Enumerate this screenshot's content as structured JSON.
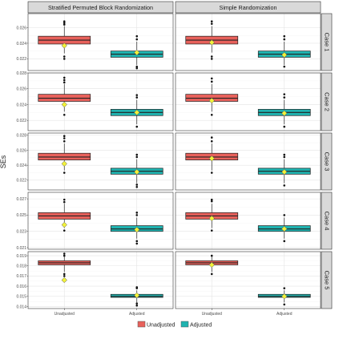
{
  "chart_data": {
    "type": "boxplot",
    "ylabel": "SEs",
    "columns": [
      "Stratified Permuted Block Randomization",
      "Simple Randomization"
    ],
    "rows": [
      "Case 1",
      "Case 2",
      "Case 3",
      "Case 4",
      "Case 5"
    ],
    "categories": [
      "Unadjusted",
      "Adjusted"
    ],
    "legend": {
      "position": "bottom",
      "items": [
        {
          "label": "Unadjusted",
          "color": "#e8615b"
        },
        {
          "label": "Adjusted",
          "color": "#1fb3b0"
        }
      ]
    },
    "colors": {
      "Unadjusted": "#e8615b",
      "Adjusted": "#1fb3b0",
      "marker": "#f2f23a",
      "strip": "#d9d9d9"
    },
    "panels": [
      {
        "row": "Case 1",
        "ylim": [
          0.0205,
          0.0278
        ],
        "yticks": [
          0.022,
          0.024,
          0.026
        ],
        "ytick_labels": [
          "0.022",
          "0.024",
          "0.026"
        ],
        "boxes": [
          {
            "column": "Stratified Permuted Block Randomization",
            "category": "Unadjusted",
            "q1": 0.0239,
            "median": 0.0244,
            "q3": 0.0249,
            "whisker_low": 0.0227,
            "whisker_high": 0.0262,
            "outliers": [
              0.0264,
              0.0266,
              0.0268,
              0.022,
              0.0223
            ],
            "marker": 0.0237
          },
          {
            "column": "Stratified Permuted Block Randomization",
            "category": "Adjusted",
            "q1": 0.0222,
            "median": 0.0226,
            "q3": 0.023,
            "whisker_low": 0.0212,
            "whisker_high": 0.0242,
            "outliers": [
              0.0245,
              0.0249,
              0.021,
              0.0208
            ],
            "marker": 0.0228
          },
          {
            "column": "Simple Randomization",
            "category": "Unadjusted",
            "q1": 0.0239,
            "median": 0.0244,
            "q3": 0.0249,
            "whisker_low": 0.0228,
            "whisker_high": 0.0262,
            "outliers": [
              0.0265,
              0.0268,
              0.0223,
              0.022
            ],
            "marker": 0.0241
          },
          {
            "column": "Simple Randomization",
            "category": "Adjusted",
            "q1": 0.0222,
            "median": 0.0226,
            "q3": 0.023,
            "whisker_low": 0.0212,
            "whisker_high": 0.0242,
            "outliers": [
              0.0245,
              0.0249,
              0.021
            ],
            "marker": 0.0225
          }
        ]
      },
      {
        "row": "Case 2",
        "ylim": [
          0.0207,
          0.028
        ],
        "yticks": [
          0.022,
          0.024,
          0.026,
          0.028
        ],
        "ytick_labels": [
          "0.022",
          "0.024",
          "0.026",
          "0.028"
        ],
        "boxes": [
          {
            "column": "Stratified Permuted Block Randomization",
            "category": "Unadjusted",
            "q1": 0.0244,
            "median": 0.0248,
            "q3": 0.0253,
            "whisker_low": 0.0231,
            "whisker_high": 0.0266,
            "outliers": [
              0.0268,
              0.0271,
              0.0274,
              0.0227
            ],
            "marker": 0.024
          },
          {
            "column": "Stratified Permuted Block Randomization",
            "category": "Adjusted",
            "q1": 0.0226,
            "median": 0.023,
            "q3": 0.0234,
            "whisker_low": 0.0215,
            "whisker_high": 0.0246,
            "outliers": [
              0.0249,
              0.0252,
              0.0212
            ],
            "marker": 0.023
          },
          {
            "column": "Simple Randomization",
            "category": "Unadjusted",
            "q1": 0.0244,
            "median": 0.0248,
            "q3": 0.0253,
            "whisker_low": 0.0231,
            "whisker_high": 0.0266,
            "outliers": [
              0.0269,
              0.0273,
              0.0227
            ],
            "marker": 0.0245
          },
          {
            "column": "Simple Randomization",
            "category": "Adjusted",
            "q1": 0.0226,
            "median": 0.023,
            "q3": 0.0234,
            "whisker_low": 0.0215,
            "whisker_high": 0.0246,
            "outliers": [
              0.0249,
              0.0253,
              0.0212
            ],
            "marker": 0.0229
          }
        ]
      },
      {
        "row": "Case 3",
        "ylim": [
          0.0207,
          0.0283
        ],
        "yticks": [
          0.022,
          0.024,
          0.026,
          0.028
        ],
        "ytick_labels": [
          "0.022",
          "0.024",
          "0.026",
          "0.028"
        ],
        "boxes": [
          {
            "column": "Stratified Permuted Block Randomization",
            "category": "Unadjusted",
            "q1": 0.0247,
            "median": 0.0251,
            "q3": 0.0256,
            "whisker_low": 0.0233,
            "whisker_high": 0.0269,
            "outliers": [
              0.0272,
              0.0276,
              0.0279,
              0.023
            ],
            "marker": 0.0242
          },
          {
            "column": "Stratified Permuted Block Randomization",
            "category": "Adjusted",
            "q1": 0.0228,
            "median": 0.0232,
            "q3": 0.0236,
            "whisker_low": 0.0216,
            "whisker_high": 0.0248,
            "outliers": [
              0.0251,
              0.0254,
              0.0214,
              0.0211
            ],
            "marker": 0.0231
          },
          {
            "column": "Simple Randomization",
            "category": "Unadjusted",
            "q1": 0.0247,
            "median": 0.0251,
            "q3": 0.0256,
            "whisker_low": 0.0233,
            "whisker_high": 0.0269,
            "outliers": [
              0.0272,
              0.0277,
              0.023
            ],
            "marker": 0.0249
          },
          {
            "column": "Simple Randomization",
            "category": "Adjusted",
            "q1": 0.0228,
            "median": 0.0232,
            "q3": 0.0236,
            "whisker_low": 0.0216,
            "whisker_high": 0.0248,
            "outliers": [
              0.0251,
              0.0254,
              0.0213
            ],
            "marker": 0.0231
          }
        ]
      },
      {
        "row": "Case 4",
        "ylim": [
          0.0208,
          0.0278
        ],
        "yticks": [
          0.021,
          0.023,
          0.025,
          0.027
        ],
        "ytick_labels": [
          "0.021",
          "0.023",
          "0.025",
          "0.027"
        ],
        "boxes": [
          {
            "column": "Stratified Permuted Block Randomization",
            "category": "Unadjusted",
            "q1": 0.0245,
            "median": 0.0249,
            "q3": 0.0253,
            "whisker_low": 0.0234,
            "whisker_high": 0.0264,
            "outliers": [
              0.0266,
              0.0269,
              0.0231
            ],
            "marker": 0.0238
          },
          {
            "column": "Stratified Permuted Block Randomization",
            "category": "Adjusted",
            "q1": 0.023,
            "median": 0.0233,
            "q3": 0.0237,
            "whisker_low": 0.0221,
            "whisker_high": 0.0247,
            "outliers": [
              0.025,
              0.0253,
              0.0218,
              0.0215
            ],
            "marker": 0.0232
          },
          {
            "column": "Simple Randomization",
            "category": "Unadjusted",
            "q1": 0.0245,
            "median": 0.0249,
            "q3": 0.0253,
            "whisker_low": 0.0234,
            "whisker_high": 0.0264,
            "outliers": [
              0.0267,
              0.0269,
              0.0231
            ],
            "marker": 0.0246
          },
          {
            "column": "Simple Randomization",
            "category": "Adjusted",
            "q1": 0.023,
            "median": 0.0233,
            "q3": 0.0237,
            "whisker_low": 0.0221,
            "whisker_high": 0.0247,
            "outliers": [
              0.025,
              0.0218
            ],
            "marker": 0.0233
          }
        ]
      },
      {
        "row": "Case 5",
        "ylim": [
          0.0138,
          0.0194
        ],
        "yticks": [
          0.014,
          0.015,
          0.016,
          0.017,
          0.018,
          0.019
        ],
        "ytick_labels": [
          "0.014",
          "0.015",
          "0.016",
          "0.017",
          "0.018",
          "0.019"
        ],
        "boxes": [
          {
            "column": "Stratified Permuted Block Randomization",
            "category": "Unadjusted",
            "q1": 0.0181,
            "median": 0.0183,
            "q3": 0.0185,
            "whisker_low": 0.0174,
            "whisker_high": 0.0189,
            "outliers": [
              0.019,
              0.0192,
              0.0172,
              0.017
            ],
            "marker": 0.0166
          },
          {
            "column": "Stratified Permuted Block Randomization",
            "category": "Adjusted",
            "q1": 0.0149,
            "median": 0.015,
            "q3": 0.0152,
            "whisker_low": 0.0144,
            "whisker_high": 0.0156,
            "outliers": [
              0.0158,
              0.0159,
              0.0143,
              0.0141
            ],
            "marker": 0.0151
          },
          {
            "column": "Simple Randomization",
            "category": "Unadjusted",
            "q1": 0.0181,
            "median": 0.0183,
            "q3": 0.0185,
            "whisker_low": 0.0174,
            "whisker_high": 0.0189,
            "outliers": [
              0.019,
              0.0172
            ],
            "marker": 0.0181
          },
          {
            "column": "Simple Randomization",
            "category": "Adjusted",
            "q1": 0.0149,
            "median": 0.015,
            "q3": 0.0152,
            "whisker_low": 0.0144,
            "whisker_high": 0.0156,
            "outliers": [
              0.0158,
              0.0142
            ],
            "marker": 0.015
          }
        ]
      }
    ]
  }
}
